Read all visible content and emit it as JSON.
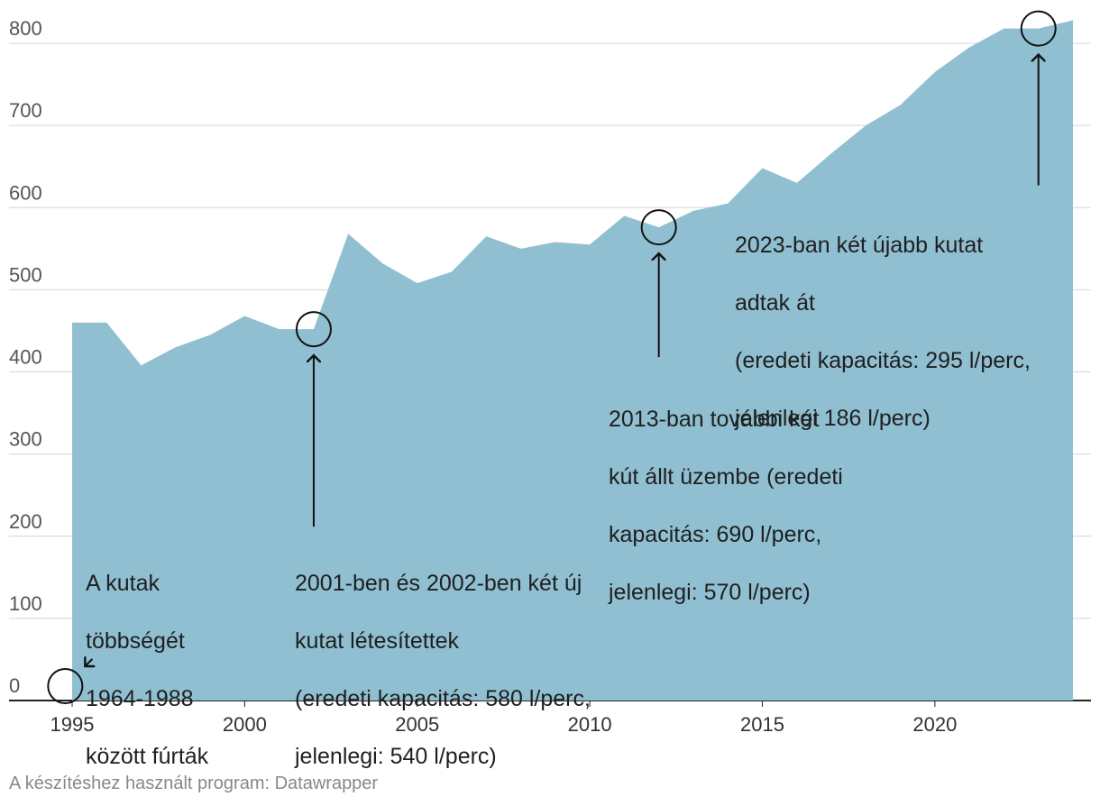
{
  "colors": {
    "area": "#8fbfd0",
    "grid": "#d4d4d4",
    "axis": "#222222"
  },
  "chart_data": {
    "type": "area",
    "title": "",
    "xlabel": "",
    "ylabel": "",
    "xlim": [
      1995,
      2024
    ],
    "ylim": [
      0,
      800
    ],
    "y_ticks": [
      0,
      100,
      200,
      300,
      400,
      500,
      600,
      700,
      800
    ],
    "x_ticks": [
      1995,
      2000,
      2005,
      2010,
      2015,
      2020
    ],
    "x": [
      1995,
      1996,
      1997,
      1998,
      1999,
      2000,
      2001,
      2002,
      2003,
      2004,
      2005,
      2006,
      2007,
      2008,
      2009,
      2010,
      2011,
      2012,
      2013,
      2014,
      2015,
      2016,
      2017,
      2018,
      2019,
      2020,
      2021,
      2022,
      2023,
      2024
    ],
    "values": [
      460,
      460,
      408,
      430,
      445,
      468,
      452,
      452,
      568,
      532,
      508,
      522,
      565,
      550,
      558,
      555,
      590,
      576,
      596,
      605,
      648,
      630,
      666,
      700,
      725,
      765,
      795,
      818,
      818,
      828
    ],
    "markers": [
      1994.8,
      2002,
      2012,
      2023
    ],
    "annotations": [
      {
        "lines": [
          "A kutak",
          "többségét",
          "1964-1988",
          "között fúrták"
        ]
      },
      {
        "lines": [
          "2001-ben és 2002-ben két új",
          "kutat létesítettek",
          "(eredeti kapacitás: 580 l/perc,",
          "jelenlegi: 540 l/perc)"
        ]
      },
      {
        "lines": [
          "2013-ban további két",
          "kút állt üzembe (eredeti",
          "kapacitás: 690 l/perc,",
          "jelenlegi: 570 l/perc)"
        ]
      },
      {
        "lines": [
          "2023-ban két újabb kutat",
          "adtak át",
          "(eredeti kapacitás: 295 l/perc,",
          "jelenlegi 186 l/perc)"
        ]
      }
    ]
  },
  "footer": "A készítéshez használt program: Datawrapper"
}
